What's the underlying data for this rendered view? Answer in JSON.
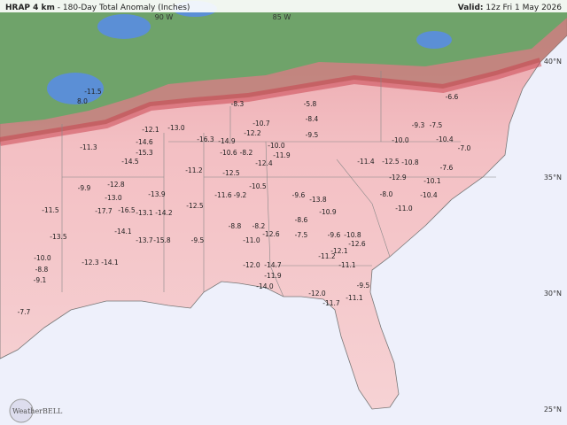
{
  "header": {
    "model": "HRAP 4 km",
    "title": "- 180-Day Total Anomaly (Inches)",
    "valid_label": "Valid:",
    "valid_time": "12z Fri 1 May 2026"
  },
  "latitude_labels": [
    "40°N",
    "35°N",
    "30°N",
    "25°N"
  ],
  "longitude_labels": [
    "90 W",
    "85 W"
  ],
  "logo": "WeatherBELL",
  "station_values": [
    "-11.5",
    "8.0",
    "-12.1",
    "-13.0",
    "-11.3",
    "-14.5",
    "-15.3",
    "-14.6",
    "-16.3",
    "-14.9",
    "-12.2",
    "-10.7",
    "-10.6",
    "-8.2",
    "-10.0",
    "-11.9",
    "-12.4",
    "-12.5",
    "-11.2",
    "-12.8",
    "-13.0",
    "-9.9",
    "-17.7",
    "-16.5",
    "-13.1",
    "-14.2",
    "-13.9",
    "-11.5",
    "-13.5",
    "-14.1",
    "-13.7",
    "-15.8",
    "-9.5",
    "-12.5",
    "-11.6",
    "-9.2",
    "-10.5",
    "-8.8",
    "-8.2",
    "-11.0",
    "-12.6",
    "-7.5",
    "-8.6",
    "-9.6",
    "-13.8",
    "-10.9",
    "-9.6",
    "-10.8",
    "-12.6",
    "-11.2",
    "-11.1",
    "-12.1",
    "-12.0",
    "-14.7",
    "-11.9",
    "-14.0",
    "-12.0",
    "-11.7",
    "-11.1",
    "-9.5",
    "-11.4",
    "-12.5",
    "-10.8",
    "-12.9",
    "-8.0",
    "-11.0",
    "-10.4",
    "-7.6",
    "-10.0",
    "-9.3",
    "-7.5",
    "-10.4",
    "-7.0",
    "-10.1",
    "-6.6",
    "-5.8",
    "-8.4",
    "-9.5",
    "-8.3",
    "-10.0",
    "-12.3",
    "-14.1",
    "-7.7",
    "-9.1",
    "-8.8"
  ]
}
